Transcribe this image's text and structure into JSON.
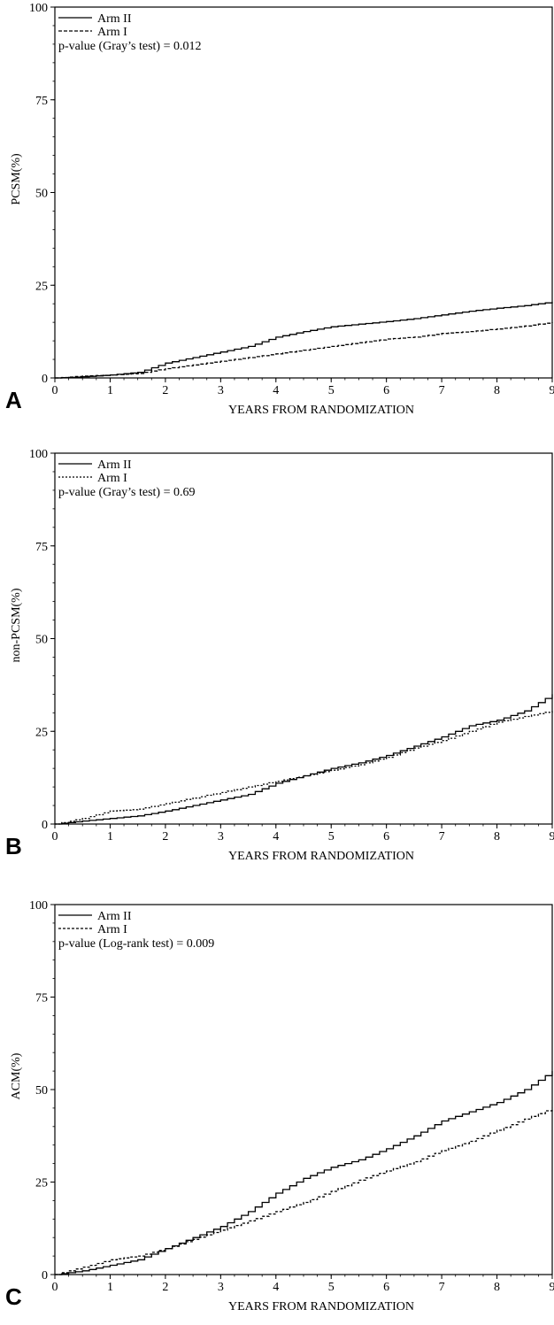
{
  "chart_data": [
    {
      "type": "line",
      "panel_label": "A",
      "xlabel": "YEARS FROM RANDOMIZATION",
      "ylabel": "PCSM(%)",
      "xlim": [
        0,
        9
      ],
      "ylim": [
        0,
        100
      ],
      "x_ticks": [
        "0",
        "1",
        "2",
        "3",
        "4",
        "5",
        "6",
        "7",
        "8",
        "9"
      ],
      "y_ticks": [
        "0",
        "25",
        "50",
        "75",
        "100"
      ],
      "grid": false,
      "legend_position": "top-left",
      "annotation": "p-value (Gray’s test) = 0.012",
      "series": [
        {
          "name": "Arm II",
          "style": "solid",
          "x": [
            0,
            0.5,
            1.0,
            1.5,
            2.0,
            2.5,
            3.0,
            3.5,
            4.0,
            4.5,
            5.0,
            5.5,
            6.0,
            6.5,
            7.0,
            7.5,
            8.0,
            8.5,
            9.0
          ],
          "y": [
            0,
            0.3,
            0.8,
            1.5,
            4.0,
            5.5,
            7.0,
            8.5,
            11.0,
            12.5,
            13.8,
            14.5,
            15.2,
            16.0,
            17.0,
            18.0,
            18.8,
            19.5,
            20.5
          ]
        },
        {
          "name": "Arm I",
          "style": "dashed",
          "x": [
            0,
            0.5,
            1.0,
            1.5,
            2.0,
            2.5,
            3.0,
            3.5,
            4.0,
            4.5,
            5.0,
            5.5,
            6.0,
            6.5,
            7.0,
            7.5,
            8.0,
            8.5,
            9.0
          ],
          "y": [
            0,
            0.5,
            0.8,
            1.2,
            2.5,
            3.5,
            4.5,
            5.5,
            6.5,
            7.5,
            8.5,
            9.5,
            10.5,
            11.0,
            12.0,
            12.5,
            13.2,
            14.0,
            15.0
          ]
        }
      ]
    },
    {
      "type": "line",
      "panel_label": "B",
      "xlabel": "YEARS FROM RANDOMIZATION",
      "ylabel": "non-PCSM(%)",
      "xlim": [
        0,
        9
      ],
      "ylim": [
        0,
        100
      ],
      "x_ticks": [
        "0",
        "1",
        "2",
        "3",
        "4",
        "5",
        "6",
        "7",
        "8",
        "9"
      ],
      "y_ticks": [
        "0",
        "25",
        "50",
        "75",
        "100"
      ],
      "grid": false,
      "legend_position": "top-left",
      "annotation": "p-value (Gray’s test) = 0.69",
      "series": [
        {
          "name": "Arm II",
          "style": "solid",
          "x": [
            0,
            0.5,
            1.0,
            1.5,
            2.0,
            2.5,
            3.0,
            3.5,
            4.0,
            4.5,
            5.0,
            5.5,
            6.0,
            6.5,
            7.0,
            7.5,
            8.0,
            8.5,
            9.0
          ],
          "y": [
            0,
            0.8,
            1.5,
            2.2,
            3.5,
            5.0,
            6.5,
            8.0,
            11.0,
            13.0,
            15.0,
            16.5,
            18.5,
            21.0,
            23.5,
            26.5,
            28.0,
            30.5,
            35.0
          ]
        },
        {
          "name": "Arm I",
          "style": "dashed",
          "x": [
            0,
            0.5,
            1.0,
            1.5,
            2.0,
            2.5,
            3.0,
            3.5,
            4.0,
            4.5,
            5.0,
            5.5,
            6.0,
            6.5,
            7.0,
            7.5,
            8.0,
            8.5,
            9.0
          ],
          "y": [
            0,
            1.5,
            3.5,
            4.0,
            5.5,
            7.0,
            8.5,
            10.0,
            11.5,
            13.0,
            14.5,
            16.0,
            18.0,
            20.5,
            22.5,
            25.0,
            27.5,
            29.0,
            30.5
          ]
        }
      ]
    },
    {
      "type": "line",
      "panel_label": "C",
      "xlabel": "YEARS FROM RANDOMIZATION",
      "ylabel": "ACM(%)",
      "xlim": [
        0,
        9
      ],
      "ylim": [
        0,
        100
      ],
      "x_ticks": [
        "0",
        "1",
        "2",
        "3",
        "4",
        "5",
        "6",
        "7",
        "8",
        "9"
      ],
      "y_ticks": [
        "0",
        "25",
        "50",
        "75",
        "100"
      ],
      "grid": false,
      "legend_position": "top-left",
      "annotation": "p-value (Log-rank test) = 0.009",
      "series": [
        {
          "name": "Arm II",
          "style": "solid",
          "x": [
            0,
            0.5,
            1.0,
            1.5,
            2.0,
            2.5,
            3.0,
            3.5,
            4.0,
            4.5,
            5.0,
            5.5,
            6.0,
            6.5,
            7.0,
            7.5,
            8.0,
            8.5,
            9.0
          ],
          "y": [
            0,
            1.0,
            2.5,
            4.0,
            7.0,
            10.0,
            13.0,
            17.0,
            22.0,
            26.0,
            29.0,
            31.0,
            34.0,
            37.5,
            41.5,
            44.0,
            46.5,
            50.0,
            55.0
          ]
        },
        {
          "name": "Arm I",
          "style": "dashed",
          "x": [
            0,
            0.5,
            1.0,
            1.5,
            2.0,
            2.5,
            3.0,
            3.5,
            4.0,
            4.5,
            5.0,
            5.5,
            6.0,
            6.5,
            7.0,
            7.5,
            8.0,
            8.5,
            9.0
          ],
          "y": [
            0,
            2.0,
            4.0,
            5.0,
            7.0,
            9.5,
            12.0,
            14.5,
            17.0,
            19.5,
            22.5,
            25.5,
            28.0,
            30.5,
            33.5,
            36.0,
            39.0,
            42.0,
            45.0
          ]
        }
      ]
    }
  ]
}
